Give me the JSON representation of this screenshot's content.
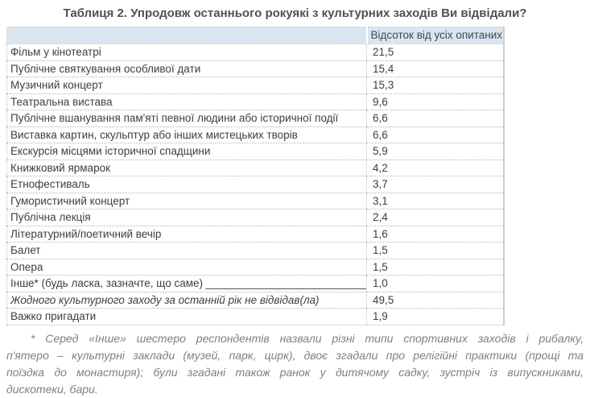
{
  "title": "Таблиця 2. Упродовж останнього рокуякі з культурних заходів Ви відвідали?",
  "table": {
    "value_header": "Відсоток від усіх опитаних",
    "rows": [
      {
        "label": "Фільм у кінотеатрі",
        "value": "21,5"
      },
      {
        "label": "Публічне святкування особливої дати",
        "value": "15,4"
      },
      {
        "label": "Музичний концерт",
        "value": "15,3"
      },
      {
        "label": "Театральна вистава",
        "value": "9,6"
      },
      {
        "label": "Публічне вшанування пам'яті певної людини або історичної події",
        "value": "6,6"
      },
      {
        "label": "Виставка картин, скульптур або інших мистецьких творів",
        "value": "6,6"
      },
      {
        "label": "Екскурсія місцями історичної спадщини",
        "value": "5,9"
      },
      {
        "label": "Книжковий ярмарок",
        "value": "4,2"
      },
      {
        "label": "Етнофестиваль",
        "value": "3,7"
      },
      {
        "label": "Гумористичний концерт",
        "value": "3,1"
      },
      {
        "label": "Публічна лекція",
        "value": "2,4"
      },
      {
        "label": "Літературний/поетичний вечір",
        "value": "1,6"
      },
      {
        "label": "Балет",
        "value": "1,5"
      },
      {
        "label": "Опера",
        "value": "1,5"
      },
      {
        "label": "Інше* (будь ласка, зазначте, що саме) ___________________________",
        "value": "1,0"
      },
      {
        "label": "Жодного культурного заходу за останній рік не відвідав(ла)",
        "value": "49,5",
        "italic": true
      },
      {
        "label": "Важко пригадати",
        "value": "1,9"
      }
    ]
  },
  "footnote": {
    "lines": [
      "* Серед «Інше» шестеро респондентів назвали різні типи спортивних заходів і рибалку,",
      "п'ятеро – культурні заклади (музей, парк, цирк), двоє згадали про релігійні практики (прощі та",
      "поїздка до монастиря); були згадані також ранок у дитячому садку, зустріч із випускниками,",
      "дискотеки, бари."
    ]
  },
  "colors": {
    "header_bg": "#d9e6f2",
    "title_text": "#4d5358",
    "body_text": "#3c3e40",
    "header_text": "#3d4a55",
    "footnote_text": "#7d8084",
    "row_border": "#b5b5b5",
    "table_right_border": "#cfcfcf"
  }
}
